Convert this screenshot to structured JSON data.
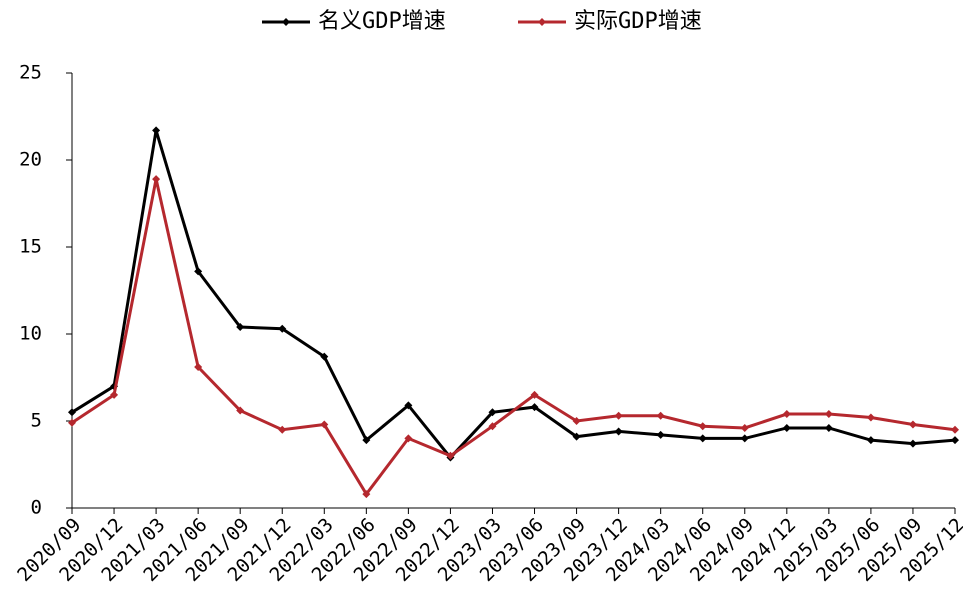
{
  "chart_data": {
    "type": "line",
    "categories": [
      "2020/09",
      "2020/12",
      "2021/03",
      "2021/06",
      "2021/09",
      "2021/12",
      "2022/03",
      "2022/06",
      "2022/09",
      "2022/12",
      "2023/03",
      "2023/06",
      "2023/09",
      "2023/12",
      "2024/03",
      "2024/06",
      "2024/09",
      "2024/12",
      "2025/03",
      "2025/06",
      "2025/09",
      "2025/12"
    ],
    "series": [
      {
        "name": "名义GDP增速",
        "color": "#000000",
        "values": [
          5.5,
          7.0,
          21.7,
          13.6,
          10.4,
          10.3,
          8.7,
          3.9,
          5.9,
          2.9,
          5.5,
          5.8,
          4.1,
          4.4,
          4.2,
          4.0,
          4.0,
          4.6,
          4.6,
          3.9,
          3.7,
          3.9
        ]
      },
      {
        "name": "实际GDP增速",
        "color": "#b5282e",
        "values": [
          4.9,
          6.5,
          18.9,
          8.1,
          5.6,
          4.5,
          4.8,
          0.8,
          4.0,
          3.0,
          4.7,
          6.5,
          5.0,
          5.3,
          5.3,
          4.7,
          4.6,
          5.4,
          5.4,
          5.2,
          4.8,
          4.5
        ]
      }
    ],
    "ylim": [
      0,
      25
    ],
    "yticks": [
      0,
      5,
      10,
      15,
      20,
      25
    ],
    "legend": "top",
    "grid": false
  }
}
